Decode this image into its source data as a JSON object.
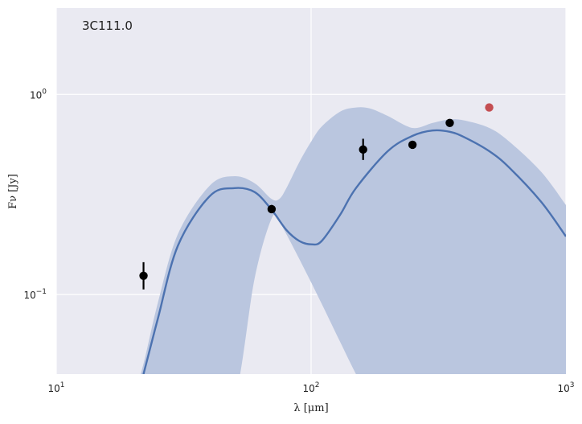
{
  "chart_data": {
    "type": "scatter",
    "annotation": "3C111.0",
    "xlabel": "λ [μm]",
    "ylabel": "Fν [Jy]",
    "xscale": "log",
    "yscale": "log",
    "xlim": [
      10,
      1000
    ],
    "ylim": [
      0.04,
      2.7
    ],
    "grid": true,
    "colors": {
      "background": "#EAEAF2",
      "model": "#4C72B0",
      "band": "#BAC6DF",
      "points": "#000000",
      "upper_limit": "#C44E52"
    },
    "x_ticks": [
      {
        "value": 10,
        "base": "10",
        "exp": "1"
      },
      {
        "value": 100,
        "base": "10",
        "exp": "2"
      },
      {
        "value": 1000,
        "base": "10",
        "exp": "3"
      }
    ],
    "y_ticks": [
      {
        "value": 0.1,
        "base": "10",
        "exp": "−1"
      },
      {
        "value": 1,
        "base": "10",
        "exp": "0"
      }
    ],
    "series": [
      {
        "kind": "detections",
        "points": [
          {
            "x": 22,
            "y": 0.124,
            "yerr_low": 0.106,
            "yerr_high": 0.145
          },
          {
            "x": 70,
            "y": 0.267,
            "yerr_low": 0.255,
            "yerr_high": 0.28
          },
          {
            "x": 160,
            "y": 0.53,
            "yerr_low": 0.47,
            "yerr_high": 0.6
          },
          {
            "x": 250,
            "y": 0.56,
            "yerr_low": 0.54,
            "yerr_high": 0.58
          },
          {
            "x": 350,
            "y": 0.72,
            "yerr_low": 0.69,
            "yerr_high": 0.75
          }
        ]
      },
      {
        "kind": "upper_limits",
        "points": [
          {
            "x": 500,
            "y": 0.86
          }
        ]
      },
      {
        "kind": "model",
        "x": [
          22,
          25,
          30,
          40,
          50,
          60,
          70,
          80,
          90,
          100,
          110,
          130,
          150,
          200,
          250,
          300,
          350,
          400,
          500,
          600,
          800,
          1000
        ],
        "y": [
          0.04,
          0.075,
          0.175,
          0.31,
          0.34,
          0.325,
          0.265,
          0.21,
          0.185,
          0.178,
          0.185,
          0.25,
          0.34,
          0.52,
          0.62,
          0.66,
          0.65,
          0.61,
          0.52,
          0.43,
          0.29,
          0.195
        ]
      },
      {
        "kind": "band",
        "x": [
          20,
          22,
          25,
          30,
          40,
          50,
          60,
          70,
          75,
          80,
          90,
          100,
          110,
          130,
          150,
          170,
          200,
          250,
          300,
          350,
          400,
          500,
          600,
          800,
          1000
        ],
        "lower": [
          0.03,
          0.03,
          0.03,
          0.03,
          0.03,
          0.03,
          0.12,
          0.24,
          0.23,
          0.2,
          0.15,
          0.115,
          0.09,
          0.058,
          0.04,
          0.03,
          0.03,
          0.03,
          0.03,
          0.03,
          0.03,
          0.03,
          0.03,
          0.03,
          0.03
        ],
        "upper": [
          0.03,
          0.045,
          0.09,
          0.2,
          0.35,
          0.39,
          0.36,
          0.3,
          0.3,
          0.34,
          0.46,
          0.58,
          0.69,
          0.82,
          0.86,
          0.85,
          0.78,
          0.68,
          0.72,
          0.75,
          0.74,
          0.68,
          0.58,
          0.41,
          0.28
        ]
      }
    ]
  }
}
